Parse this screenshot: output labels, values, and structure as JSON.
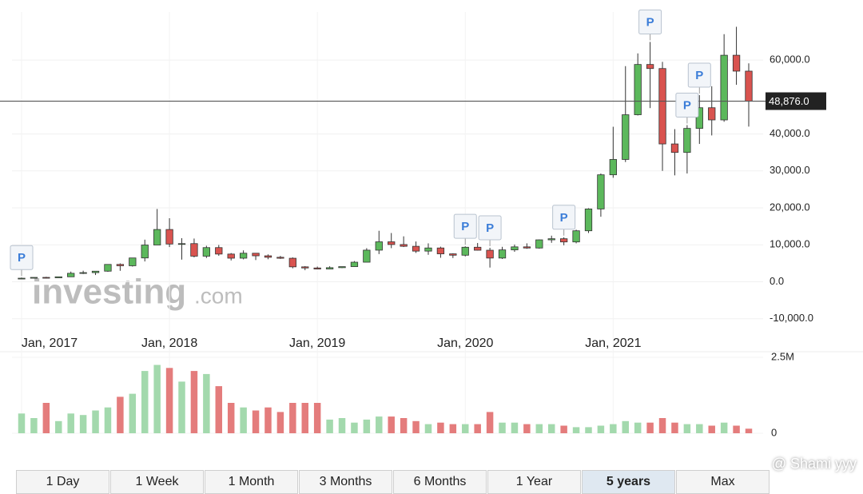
{
  "chart_data": {
    "type": "candlestick",
    "categories": [
      "Jan, 2017",
      null,
      null,
      null,
      null,
      null,
      null,
      null,
      null,
      null,
      null,
      null,
      "Jan, 2018",
      null,
      null,
      null,
      null,
      null,
      null,
      null,
      null,
      null,
      null,
      null,
      "Jan, 2019",
      null,
      null,
      null,
      null,
      null,
      null,
      null,
      null,
      null,
      null,
      null,
      "Jan, 2020",
      null,
      null,
      null,
      null,
      null,
      null,
      null,
      null,
      null,
      null,
      null,
      "Jan, 2021",
      null,
      null,
      null,
      null,
      null,
      null,
      null,
      null,
      null,
      null,
      null
    ],
    "open": [
      963,
      970,
      1190,
      1080,
      1350,
      2300,
      2480,
      2870,
      4700,
      4340,
      6450,
      9950,
      14150,
      10220,
      10330,
      6930,
      9250,
      7500,
      6390,
      7730,
      7030,
      6630,
      6370,
      4040,
      3740,
      3460,
      3820,
      4100,
      5300,
      8560,
      10820,
      10080,
      9600,
      8300,
      9150,
      7560,
      7190,
      9350,
      8540,
      6420,
      8630,
      9450,
      9140,
      11350,
      11650,
      10780,
      13800,
      19700,
      28950,
      33100,
      45200,
      58800,
      57700,
      37300,
      35000,
      41500,
      47100,
      43800,
      61300,
      57000
    ],
    "high": [
      1150,
      1200,
      1350,
      1350,
      2760,
      3000,
      2900,
      4700,
      4980,
      6470,
      11400,
      19700,
      17200,
      11800,
      11700,
      9750,
      9960,
      7770,
      8500,
      7760,
      7410,
      7000,
      6600,
      4240,
      4110,
      4200,
      4100,
      5600,
      9100,
      13800,
      13200,
      12300,
      10900,
      10400,
      9500,
      7700,
      9600,
      10500,
      9200,
      9460,
      10070,
      10400,
      11460,
      12480,
      12050,
      14100,
      19900,
      29300,
      41950,
      58350,
      61800,
      64900,
      59500,
      41300,
      42400,
      50500,
      52900,
      67000,
      69000,
      59100
    ],
    "low": [
      750,
      920,
      890,
      1070,
      1350,
      2100,
      1830,
      2700,
      2970,
      4110,
      5500,
      10700,
      9400,
      6000,
      6600,
      6430,
      7040,
      5780,
      6070,
      5880,
      6100,
      6200,
      3650,
      3130,
      3380,
      3400,
      3700,
      4100,
      5300,
      7500,
      9100,
      9400,
      7800,
      7300,
      6500,
      6430,
      6870,
      8450,
      3850,
      6170,
      8100,
      8930,
      8960,
      10550,
      9880,
      10400,
      13200,
      17600,
      28150,
      32400,
      45000,
      47000,
      30000,
      28800,
      29300,
      37300,
      39600,
      43300,
      53300,
      42000
    ],
    "close": [
      970,
      1190,
      1080,
      1350,
      2300,
      2480,
      2870,
      4700,
      4340,
      6450,
      9950,
      14150,
      10220,
      10330,
      6930,
      9250,
      7500,
      6390,
      7730,
      7030,
      6630,
      6370,
      4040,
      3740,
      3460,
      3820,
      4100,
      5300,
      8560,
      10820,
      10080,
      9600,
      8300,
      9150,
      7560,
      7190,
      9350,
      8540,
      6420,
      8630,
      9450,
      9140,
      11350,
      11650,
      10780,
      13800,
      19700,
      28950,
      33100,
      45200,
      58800,
      57700,
      37300,
      35000,
      41500,
      47100,
      43800,
      61300,
      57000,
      48876
    ],
    "volume": [
      650000,
      500000,
      1000000,
      400000,
      650000,
      600000,
      750000,
      850000,
      1200000,
      1300000,
      2050000,
      2250000,
      2150000,
      1700000,
      2050000,
      1950000,
      1550000,
      1000000,
      850000,
      750000,
      850000,
      700000,
      1000000,
      1000000,
      1000000,
      450000,
      500000,
      350000,
      450000,
      550000,
      550000,
      500000,
      400000,
      300000,
      350000,
      300000,
      300000,
      300000,
      700000,
      350000,
      350000,
      300000,
      300000,
      300000,
      250000,
      200000,
      200000,
      250000,
      300000,
      400000,
      350000,
      350000,
      500000,
      350000,
      300000,
      300000,
      250000,
      350000,
      250000,
      150000
    ],
    "up_color": "#5cb85c",
    "down_color": "#d9534f",
    "volume_up_color": "#a3d9ad",
    "volume_down_color": "#e47c7c",
    "ylim": [
      -12000,
      73000
    ],
    "yticks": [
      {
        "value": -10000,
        "label": "-10,000.0"
      },
      {
        "value": 0,
        "label": "0.0"
      },
      {
        "value": 10000,
        "label": "10,000.0"
      },
      {
        "value": 20000,
        "label": "20,000.0"
      },
      {
        "value": 30000,
        "label": "30,000.0"
      },
      {
        "value": 40000,
        "label": "40,000.0"
      },
      {
        "value": 60000,
        "label": "60,000.0"
      }
    ],
    "volume_ylim": [
      0,
      2500000
    ],
    "volume_yticks": [
      {
        "value": 0,
        "label": "0"
      },
      {
        "value": 2500000,
        "label": "2.5M"
      }
    ],
    "last_price": {
      "value": 48876,
      "label": "48,876.0"
    },
    "flags": [
      {
        "label": "P",
        "index": 0
      },
      {
        "label": "P",
        "index": 36
      },
      {
        "label": "P",
        "index": 38
      },
      {
        "label": "P",
        "index": 44
      },
      {
        "label": "P",
        "index": 51
      },
      {
        "label": "P",
        "index": 54
      },
      {
        "label": "P",
        "index": 55
      }
    ],
    "grid": true
  },
  "range_buttons": [
    {
      "label": "1 Day",
      "selected": false
    },
    {
      "label": "1 Week",
      "selected": false
    },
    {
      "label": "1 Month",
      "selected": false
    },
    {
      "label": "3 Months",
      "selected": false
    },
    {
      "label": "6 Months",
      "selected": false
    },
    {
      "label": "1 Year",
      "selected": false
    },
    {
      "label": "5 years",
      "selected": true
    },
    {
      "label": "Max",
      "selected": false
    }
  ],
  "watermark": {
    "brand": "investing",
    "suffix": ".com"
  },
  "credit": "@ Shami yyy"
}
